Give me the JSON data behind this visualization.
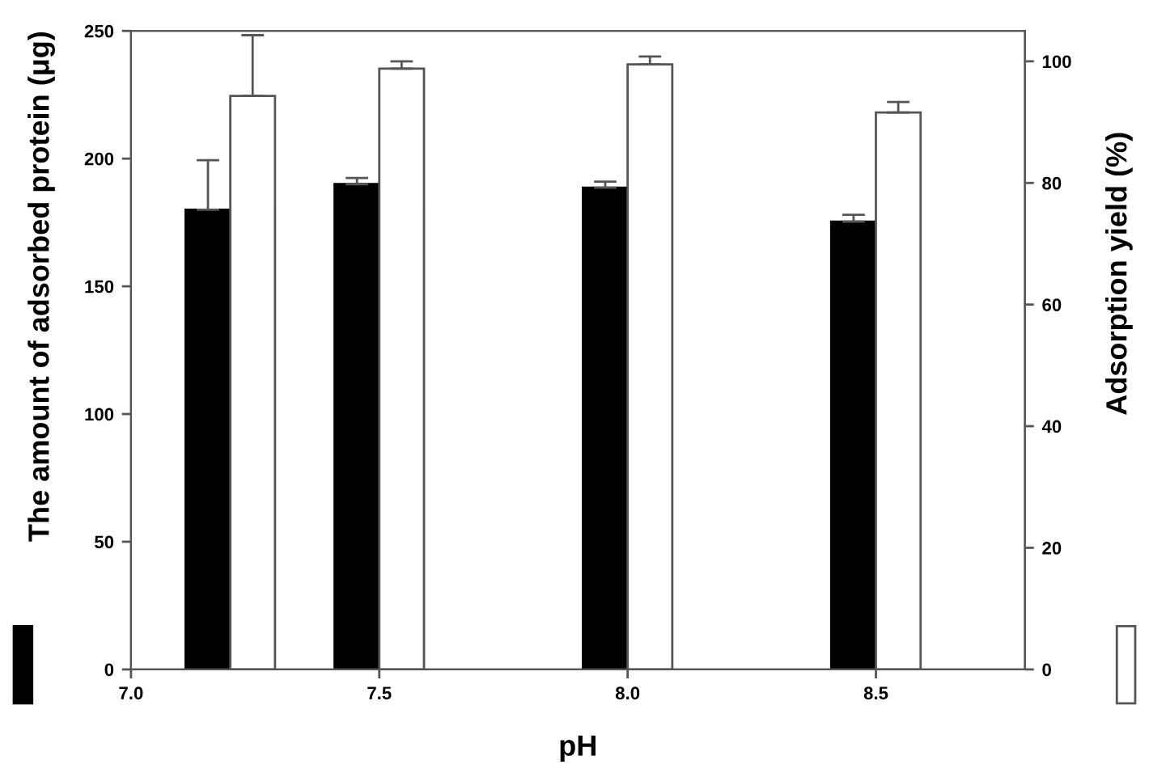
{
  "chart_data": {
    "type": "bar",
    "xlabel": "pH",
    "ylabel": "The amount of adsorbed protein (μg)",
    "y2label": "Adsorption yield (%)",
    "x": [
      7.2,
      7.5,
      8.0,
      8.5
    ],
    "series": [
      {
        "color": "#000000",
        "values": [
          180,
          190,
          188.6,
          175.3
        ],
        "errors": [
          [
            180,
            199.4
          ],
          [
            190,
            192.4
          ],
          [
            188.6,
            191
          ],
          [
            175.3,
            178
          ]
        ]
      },
      {
        "color": "#ffffff",
        "axis": "y2",
        "values": [
          94.3,
          98.8,
          99.5,
          91.6
        ],
        "errors": [
          [
            94.3,
            104.3
          ],
          [
            98.8,
            100
          ],
          [
            99.5,
            100.8
          ],
          [
            91.6,
            93.3
          ]
        ]
      }
    ],
    "xlim": [
      7.0,
      8.8
    ],
    "xticks": [
      {
        "value": 7.0,
        "label": "7.0"
      },
      7.5,
      {
        "value": 8.0,
        "label": "8.0"
      },
      8.5
    ],
    "ylim": [
      0,
      250
    ],
    "yticks": [
      0,
      50,
      100,
      150,
      200,
      250
    ],
    "y2lim": [
      0,
      105
    ],
    "y2ticks": [
      0,
      20,
      40,
      60,
      80,
      100
    ],
    "grid": false,
    "legend": false
  }
}
